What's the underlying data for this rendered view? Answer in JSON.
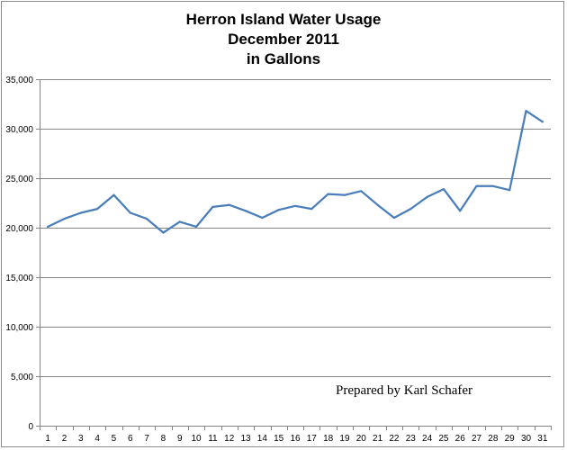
{
  "chart_data": {
    "type": "line",
    "title_lines": [
      "Herron Island Water Usage",
      "December 2011",
      "in Gallons"
    ],
    "xlabel": "",
    "ylabel": "",
    "x": [
      1,
      2,
      3,
      4,
      5,
      6,
      7,
      8,
      9,
      10,
      11,
      12,
      13,
      14,
      15,
      16,
      17,
      18,
      19,
      20,
      21,
      22,
      23,
      24,
      25,
      26,
      27,
      28,
      29,
      30,
      31
    ],
    "series": [
      {
        "values": [
          20100,
          20900,
          21500,
          21900,
          23300,
          21500,
          20900,
          19500,
          20600,
          20100,
          22100,
          22300,
          21700,
          21000,
          21800,
          22200,
          21900,
          23400,
          23300,
          23700,
          22300,
          21000,
          21900,
          23100,
          23900,
          21700,
          24200,
          24200,
          23800,
          31800,
          30700
        ],
        "color": "#4a7ebb"
      }
    ],
    "ylim": [
      0,
      35000
    ],
    "yticks": [
      0,
      5000,
      10000,
      15000,
      20000,
      25000,
      30000,
      35000
    ],
    "ytick_labels": [
      "0",
      "5,000",
      "10,000",
      "15,000",
      "20,000",
      "25,000",
      "30,000",
      "35,000"
    ],
    "xtick_labels": [
      "1",
      "2",
      "3",
      "4",
      "5",
      "6",
      "7",
      "8",
      "9",
      "10",
      "11",
      "12",
      "13",
      "14",
      "15",
      "16",
      "17",
      "18",
      "19",
      "20",
      "21",
      "22",
      "23",
      "24",
      "25",
      "26",
      "27",
      "28",
      "29",
      "30",
      "31"
    ],
    "grid": true,
    "legend": "none",
    "annotation": "Prepared by Karl Schafer",
    "colors": {
      "line": "#4a7ebb",
      "grid": "#868686",
      "axis": "#868686"
    }
  }
}
